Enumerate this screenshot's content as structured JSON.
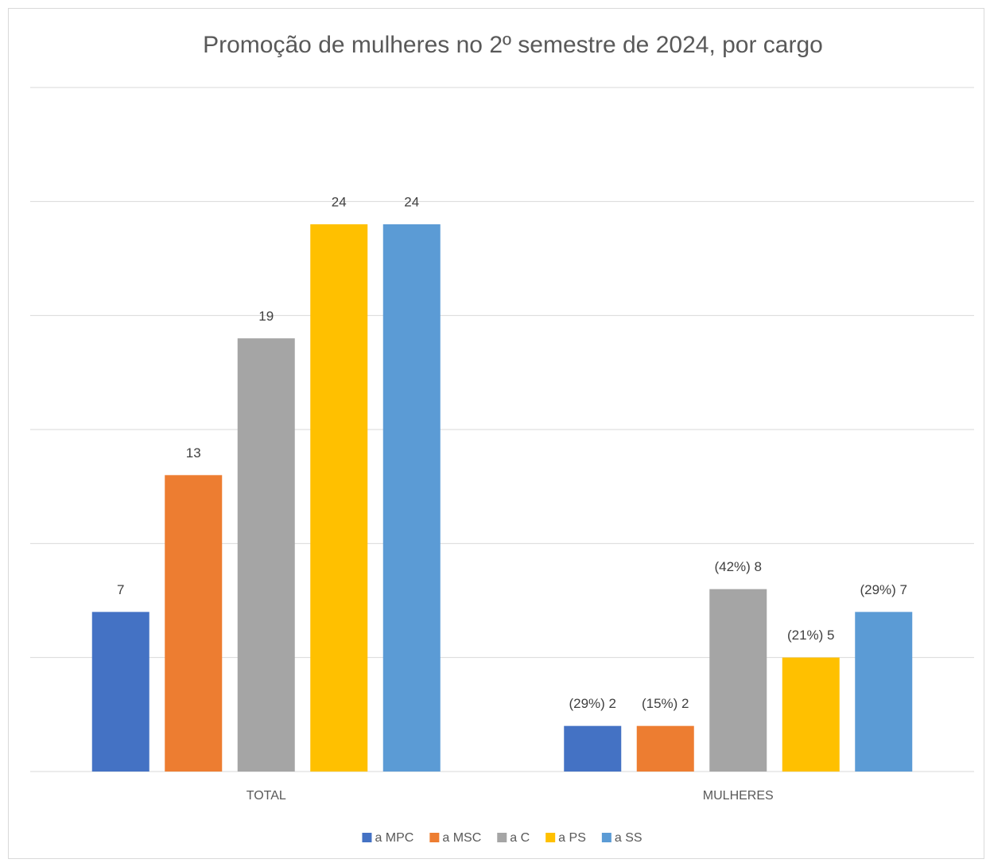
{
  "chart_data": {
    "type": "bar",
    "title": "Promoção de mulheres no 2º semestre de 2024, por cargo",
    "categories": [
      "TOTAL",
      "MULHERES"
    ],
    "series": [
      {
        "name": "a MPC",
        "color": "#4472c4",
        "values": [
          7,
          2
        ],
        "value_labels": [
          "7",
          "(29%) 2"
        ]
      },
      {
        "name": "a MSC",
        "color": "#ed7d31",
        "values": [
          13,
          2
        ],
        "value_labels": [
          "13",
          "(15%) 2"
        ]
      },
      {
        "name": "a C",
        "color": "#a5a5a5",
        "values": [
          19,
          8
        ],
        "value_labels": [
          "19",
          "(42%) 8"
        ]
      },
      {
        "name": "a PS",
        "color": "#ffc000",
        "values": [
          24,
          5
        ],
        "value_labels": [
          "24",
          "(21%) 5"
        ]
      },
      {
        "name": "a SS",
        "color": "#5b9bd5",
        "values": [
          24,
          7
        ],
        "value_labels": [
          "24",
          "(29%) 7"
        ]
      }
    ],
    "ylim": [
      0,
      30
    ],
    "yticks": [
      0,
      5,
      10,
      15,
      20,
      25,
      30
    ],
    "grid": true,
    "show_ytick_labels": false,
    "legend": "bottom"
  }
}
